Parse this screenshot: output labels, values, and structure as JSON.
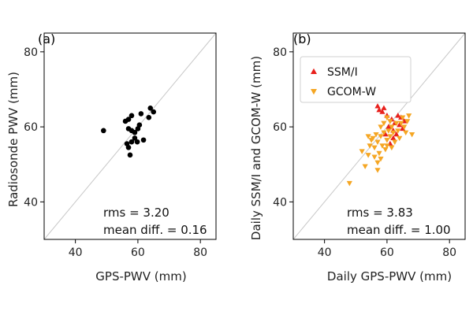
{
  "chart_data": [
    {
      "type": "scatter",
      "panel_label": "(a)",
      "xlabel": "GPS-PWV (mm)",
      "ylabel": "Radiosonde PWV (mm)",
      "xlim": [
        30,
        85
      ],
      "ylim": [
        30,
        85
      ],
      "xticks": [
        40,
        60,
        80
      ],
      "yticks": [
        40,
        60,
        80
      ],
      "one_to_one_line": true,
      "grid": false,
      "series": [
        {
          "color": "#000000",
          "marker": "circle",
          "points": [
            [
              49,
              59
            ],
            [
              56,
              61.5
            ],
            [
              57,
              62
            ],
            [
              58,
              63
            ],
            [
              60.5,
              60.5
            ],
            [
              61,
              63.5
            ],
            [
              63.5,
              62.5
            ],
            [
              64,
              65
            ],
            [
              65,
              64
            ],
            [
              57,
              59.5
            ],
            [
              58,
              59
            ],
            [
              59,
              58.5
            ],
            [
              60,
              59.5
            ],
            [
              59,
              57
            ],
            [
              59.8,
              56
            ],
            [
              61.8,
              56.5
            ],
            [
              58,
              56
            ],
            [
              56.5,
              55.5
            ],
            [
              57,
              54.5
            ],
            [
              57.5,
              52.5
            ]
          ]
        }
      ],
      "annotations": [
        "rms = 3.20",
        "mean diff. = 0.16"
      ]
    },
    {
      "type": "scatter",
      "panel_label": "(b)",
      "xlabel": "Daily GPS-PWV (mm)",
      "ylabel": "Daily SSM/I and GCOM-W (mm)",
      "xlim": [
        30,
        85
      ],
      "ylim": [
        30,
        85
      ],
      "xticks": [
        40,
        60,
        80
      ],
      "yticks": [
        40,
        60,
        80
      ],
      "one_to_one_line": true,
      "grid": false,
      "legend_position": "top-left",
      "series": [
        {
          "name": "SSM/I",
          "color": "#e8201c",
          "marker": "triangle-up",
          "points": [
            [
              57,
              65.5
            ],
            [
              57.5,
              64.5
            ],
            [
              58.5,
              64
            ],
            [
              59,
              65
            ],
            [
              60,
              63
            ],
            [
              61.5,
              62
            ],
            [
              62.5,
              61
            ],
            [
              63.5,
              63
            ],
            [
              64.5,
              62.5
            ],
            [
              60.5,
              60
            ],
            [
              62,
              59
            ],
            [
              64,
              60.5
            ],
            [
              63,
              58
            ],
            [
              65,
              59.5
            ],
            [
              62,
              57
            ],
            [
              61,
              55.5
            ],
            [
              59.5,
              58
            ],
            [
              65.5,
              61.5
            ]
          ]
        },
        {
          "name": "GCOM-W",
          "color": "#f5a623",
          "marker": "triangle-down",
          "points": [
            [
              48,
              45
            ],
            [
              52,
              53.5
            ],
            [
              53,
              49.5
            ],
            [
              54,
              52.5
            ],
            [
              54.5,
              55
            ],
            [
              55,
              56.5
            ],
            [
              56,
              54.5
            ],
            [
              56,
              52
            ],
            [
              57,
              56
            ],
            [
              57.5,
              53
            ],
            [
              57,
              50.5
            ],
            [
              58,
              57.5
            ],
            [
              58.5,
              55
            ],
            [
              58,
              51.5
            ],
            [
              59,
              58.5
            ],
            [
              59.5,
              54
            ],
            [
              60,
              56.5
            ],
            [
              60.5,
              59
            ],
            [
              61,
              57.5
            ],
            [
              61.5,
              60
            ],
            [
              62,
              58.5
            ],
            [
              62.5,
              56
            ],
            [
              63,
              61
            ],
            [
              63.5,
              59
            ],
            [
              64,
              57
            ],
            [
              64.5,
              61
            ],
            [
              65,
              62.5
            ],
            [
              65.5,
              60
            ],
            [
              66,
              58.5
            ],
            [
              66.5,
              61.5
            ],
            [
              67,
              63
            ],
            [
              68,
              58
            ],
            [
              66.5,
              67.5
            ],
            [
              59,
              61
            ],
            [
              60,
              62.5
            ],
            [
              61,
              61.5
            ],
            [
              58,
              60
            ],
            [
              55.5,
              57
            ],
            [
              54,
              57.5
            ],
            [
              56.5,
              58
            ],
            [
              60,
              55
            ],
            [
              61.5,
              54.5
            ],
            [
              57,
              48.5
            ]
          ]
        }
      ],
      "annotations": [
        "rms = 3.83",
        "mean diff. = 1.00"
      ]
    }
  ]
}
